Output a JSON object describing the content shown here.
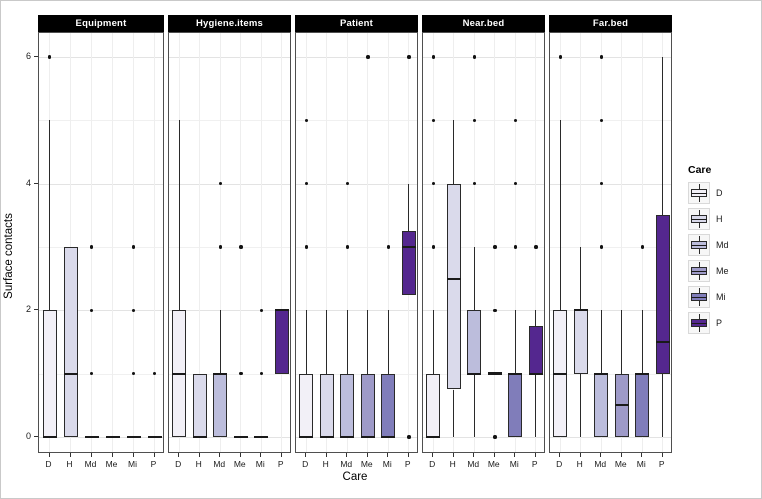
{
  "chart_data": {
    "type": "boxplot",
    "title": "",
    "xlabel": "Care",
    "ylabel": "Surface contacts",
    "ylim": [
      0,
      6
    ],
    "y_ticks": [
      0,
      2,
      4,
      6
    ],
    "y_minor_gridlines": [
      1,
      3,
      5
    ],
    "grid": "on",
    "categories": [
      "D",
      "H",
      "Md",
      "Me",
      "Mi",
      "P"
    ],
    "fill_colors": {
      "D": "#F2F0F7",
      "H": "#DADAEB",
      "Md": "#BCBDDC",
      "Me": "#9E9AC8",
      "Mi": "#807DBA",
      "P": "#54278F"
    },
    "strip_bg": "#000000",
    "strip_text_color": "#ffffff",
    "legend": {
      "title": "Care",
      "position": "right",
      "entries": [
        {
          "label": "D",
          "color": "#F2F0F7"
        },
        {
          "label": "H",
          "color": "#DADAEB"
        },
        {
          "label": "Md",
          "color": "#BCBDDC"
        },
        {
          "label": "Me",
          "color": "#9E9AC8"
        },
        {
          "label": "Mi",
          "color": "#807DBA"
        },
        {
          "label": "P",
          "color": "#54278F"
        }
      ]
    },
    "facets": [
      {
        "label": "Equipment",
        "boxes": [
          {
            "category": "D",
            "q1": 0,
            "median": 0,
            "q3": 2,
            "whisker_low": 0,
            "whisker_high": 5,
            "outliers": [
              6
            ]
          },
          {
            "category": "H",
            "q1": 0,
            "median": 1,
            "q3": 3,
            "whisker_low": 0,
            "whisker_high": 3,
            "outliers": []
          },
          {
            "category": "Md",
            "q1": 0,
            "median": 0,
            "q3": 0,
            "whisker_low": 0,
            "whisker_high": 0,
            "outliers": [
              1,
              2,
              3
            ]
          },
          {
            "category": "Me",
            "q1": 0,
            "median": 0,
            "q3": 0,
            "whisker_low": 0,
            "whisker_high": 0,
            "outliers": []
          },
          {
            "category": "Mi",
            "q1": 0,
            "median": 0,
            "q3": 0,
            "whisker_low": 0,
            "whisker_high": 0,
            "outliers": [
              1,
              2,
              3
            ]
          },
          {
            "category": "P",
            "q1": 0,
            "median": 0,
            "q3": 0,
            "whisker_low": 0,
            "whisker_high": 0,
            "outliers": [
              1
            ]
          }
        ]
      },
      {
        "label": "Hygiene.items",
        "boxes": [
          {
            "category": "D",
            "q1": 0,
            "median": 1,
            "q3": 2,
            "whisker_low": 0,
            "whisker_high": 5,
            "outliers": []
          },
          {
            "category": "H",
            "q1": 0,
            "median": 0,
            "q3": 1,
            "whisker_low": 0,
            "whisker_high": 1,
            "outliers": []
          },
          {
            "category": "Md",
            "q1": 0,
            "median": 1,
            "q3": 1,
            "whisker_low": 0,
            "whisker_high": 2,
            "outliers": [
              3,
              4
            ]
          },
          {
            "category": "Me",
            "q1": 0,
            "median": 0,
            "q3": 0,
            "whisker_low": 0,
            "whisker_high": 0,
            "outliers": [
              1,
              3
            ]
          },
          {
            "category": "Mi",
            "q1": 0,
            "median": 0,
            "q3": 0,
            "whisker_low": 0,
            "whisker_high": 0,
            "outliers": [
              1,
              2
            ]
          },
          {
            "category": "P",
            "q1": 1,
            "median": 2,
            "q3": 2,
            "whisker_low": 1,
            "whisker_high": 2,
            "outliers": []
          }
        ]
      },
      {
        "label": "Patient",
        "boxes": [
          {
            "category": "D",
            "q1": 0,
            "median": 0,
            "q3": 1,
            "whisker_low": 0,
            "whisker_high": 2,
            "outliers": [
              3,
              4,
              5
            ]
          },
          {
            "category": "H",
            "q1": 0,
            "median": 0,
            "q3": 1,
            "whisker_low": 0,
            "whisker_high": 2,
            "outliers": []
          },
          {
            "category": "Md",
            "q1": 0,
            "median": 0,
            "q3": 1,
            "whisker_low": 0,
            "whisker_high": 2,
            "outliers": [
              3,
              4
            ]
          },
          {
            "category": "Me",
            "q1": 0,
            "median": 0,
            "q3": 1,
            "whisker_low": 0,
            "whisker_high": 2,
            "outliers": [
              6
            ]
          },
          {
            "category": "Mi",
            "q1": 0,
            "median": 0,
            "q3": 1,
            "whisker_low": 0,
            "whisker_high": 2,
            "outliers": [
              3
            ]
          },
          {
            "category": "P",
            "q1": 2.25,
            "median": 3,
            "q3": 3.25,
            "whisker_low": 2.25,
            "whisker_high": 4,
            "outliers": [
              0,
              6
            ]
          }
        ]
      },
      {
        "label": "Near.bed",
        "boxes": [
          {
            "category": "D",
            "q1": 0,
            "median": 0,
            "q3": 1,
            "whisker_low": 0,
            "whisker_high": 2,
            "outliers": [
              3,
              4,
              5,
              6
            ]
          },
          {
            "category": "H",
            "q1": 0.75,
            "median": 2.5,
            "q3": 4,
            "whisker_low": 0,
            "whisker_high": 5,
            "outliers": []
          },
          {
            "category": "Md",
            "q1": 1,
            "median": 1,
            "q3": 2,
            "whisker_low": 0,
            "whisker_high": 3,
            "outliers": [
              4,
              5,
              6
            ]
          },
          {
            "category": "Me",
            "q1": 1,
            "median": 1,
            "q3": 1,
            "whisker_low": 1,
            "whisker_high": 1,
            "outliers": [
              0,
              2,
              3
            ]
          },
          {
            "category": "Mi",
            "q1": 0,
            "median": 1,
            "q3": 1,
            "whisker_low": 0,
            "whisker_high": 2,
            "outliers": [
              3,
              4,
              5
            ]
          },
          {
            "category": "P",
            "q1": 1,
            "median": 1,
            "q3": 1.75,
            "whisker_low": 0,
            "whisker_high": 2,
            "outliers": [
              3
            ]
          }
        ]
      },
      {
        "label": "Far.bed",
        "boxes": [
          {
            "category": "D",
            "q1": 0,
            "median": 1,
            "q3": 2,
            "whisker_low": 0,
            "whisker_high": 5,
            "outliers": [
              6
            ]
          },
          {
            "category": "H",
            "q1": 1,
            "median": 2,
            "q3": 2,
            "whisker_low": 0,
            "whisker_high": 3,
            "outliers": []
          },
          {
            "category": "Md",
            "q1": 0,
            "median": 1,
            "q3": 1,
            "whisker_low": 0,
            "whisker_high": 2,
            "outliers": [
              3,
              4,
              5,
              6
            ]
          },
          {
            "category": "Me",
            "q1": 0,
            "median": 0.5,
            "q3": 1,
            "whisker_low": 0,
            "whisker_high": 2,
            "outliers": []
          },
          {
            "category": "Mi",
            "q1": 0,
            "median": 1,
            "q3": 1,
            "whisker_low": 0,
            "whisker_high": 2,
            "outliers": [
              3
            ]
          },
          {
            "category": "P",
            "q1": 1,
            "median": 1.5,
            "q3": 3.5,
            "whisker_low": 0,
            "whisker_high": 6,
            "outliers": []
          }
        ]
      }
    ]
  }
}
